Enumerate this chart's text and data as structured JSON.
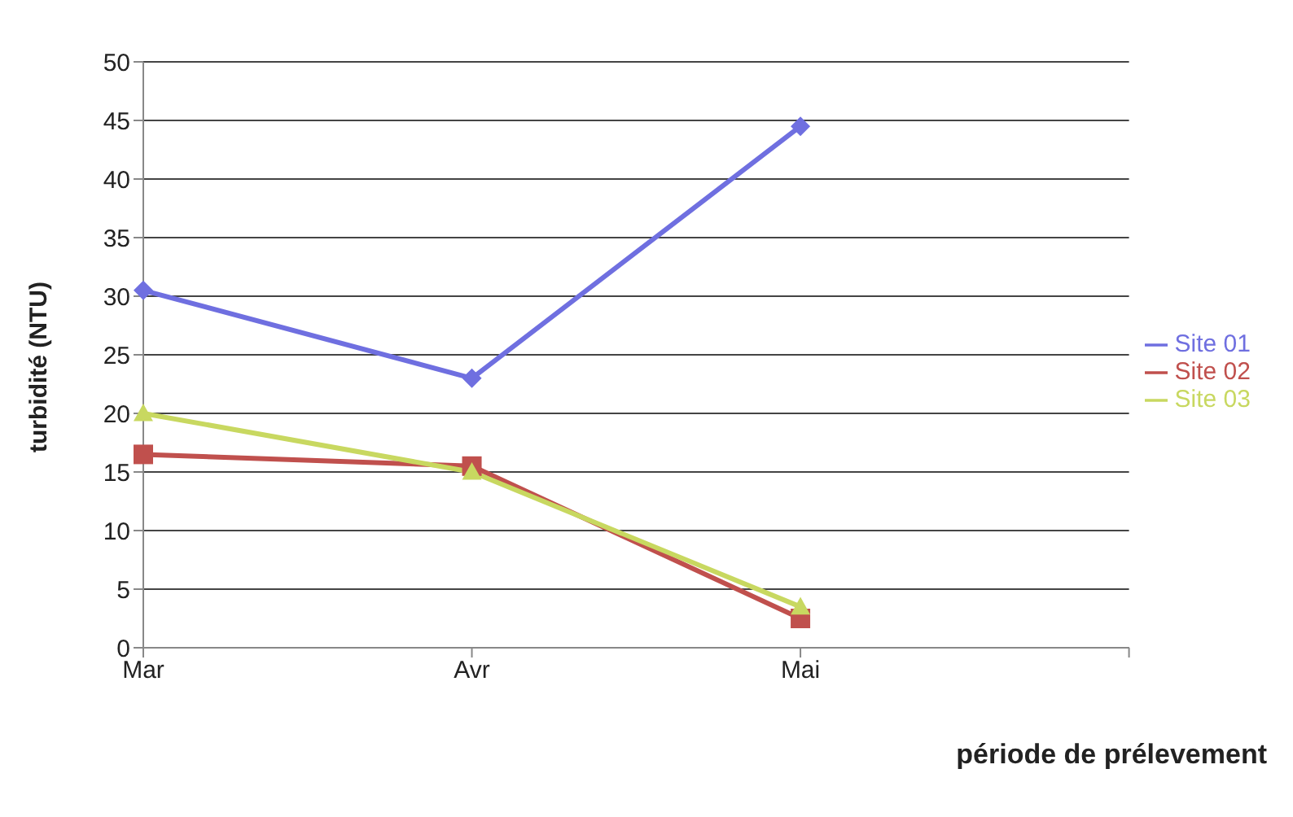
{
  "chart_data": {
    "type": "line",
    "xlabel": "période de prélevement",
    "ylabel": "turbidité (NTU)",
    "categories": [
      "Mar",
      "Avr",
      "Mai",
      null
    ],
    "series": [
      {
        "name": "Site 01",
        "color": "#6f6fe0",
        "marker": "diamond",
        "values": [
          30.5,
          23,
          44.5,
          null
        ]
      },
      {
        "name": "Site 02",
        "color": "#c0504d",
        "marker": "square",
        "values": [
          16.5,
          15.5,
          2.5,
          null
        ]
      },
      {
        "name": "Site 03",
        "color": "#c8d860",
        "marker": "triangle",
        "values": [
          20,
          15,
          3.5,
          null
        ]
      }
    ],
    "ylim": [
      0,
      50
    ],
    "yticks": [
      0,
      5,
      10,
      15,
      20,
      25,
      30,
      35,
      40,
      45,
      50
    ],
    "grid": "y",
    "legend": "right"
  }
}
